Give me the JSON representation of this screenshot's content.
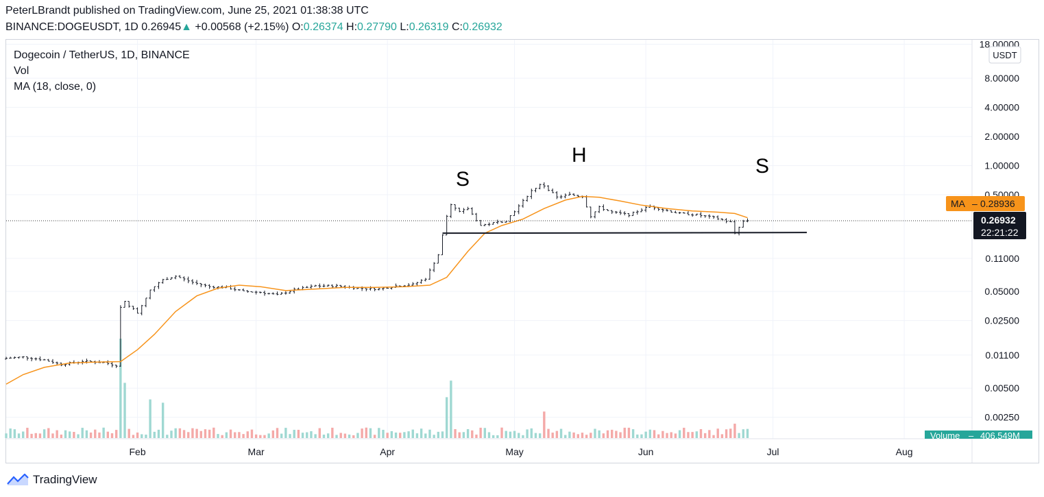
{
  "header": {
    "published": "PeterLBrandt published on TradingView.com, June 25, 2021 01:38:38 UTC",
    "symbol": "BINANCE:DOGEUSDT, 1D",
    "last": "0.26945",
    "change_arrow": "▲",
    "change": "+0.00568 (+2.15%)",
    "o_label": "O:",
    "o_value": "0.26374",
    "h_label": "H:",
    "h_value": "0.27790",
    "l_label": "L:",
    "l_value": "0.26319",
    "c_label": "C:",
    "c_value": "0.26932"
  },
  "legend": {
    "title": "Dogecoin / TetherUS, 1D, BINANCE",
    "vol": "Vol",
    "ma": "MA (18, close, 0)"
  },
  "price_scale": {
    "currency": "USDT",
    "ticks": [
      "18.00000",
      "8.00000",
      "4.00000",
      "2.00000",
      "1.00000",
      "0.50000",
      "0.11000",
      "0.05000",
      "0.02500",
      "0.01100",
      "0.00500",
      "0.00250"
    ],
    "ma_label": "MA",
    "ma_value": "0.28936",
    "last_price": "0.26932",
    "countdown": "22:21:22",
    "volume_label": "Volume",
    "volume_value": "406.549M"
  },
  "time_axis": [
    "Feb",
    "Mar",
    "Apr",
    "May",
    "Jun",
    "Jul",
    "Aug"
  ],
  "annotations": {
    "left_shoulder": "S",
    "head": "H",
    "right_shoulder": "S"
  },
  "footer": {
    "brand": "TradingView"
  },
  "colors": {
    "up": "#26a69a",
    "down": "#ef5350",
    "ma": "#f7931a",
    "vol_up": "#9fd8d2",
    "vol_down": "#f4a9a8",
    "grid": "#f0f3fa"
  },
  "chart_data": {
    "type": "candlestick",
    "title": "Dogecoin / TetherUS, 1D, BINANCE",
    "scale": "log",
    "ylim": [
      0.0015,
      20
    ],
    "x_range": [
      "2021-01-01",
      "2021-08-17"
    ],
    "pattern": "head-and-shoulders",
    "neckline": {
      "from": "2021-04-14",
      "to": "2021-07-09",
      "value": 0.2
    },
    "series": [
      {
        "name": "DOGEUSDT close",
        "points": [
          [
            "2021-01-01",
            0.0102
          ],
          [
            "2021-01-05",
            0.0105
          ],
          [
            "2021-01-10",
            0.0098
          ],
          [
            "2021-01-14",
            0.0088
          ],
          [
            "2021-01-19",
            0.0095
          ],
          [
            "2021-01-24",
            0.0092
          ],
          [
            "2021-01-27",
            0.0086
          ],
          [
            "2021-01-28",
            0.034
          ],
          [
            "2021-01-29",
            0.039
          ],
          [
            "2021-02-01",
            0.03
          ],
          [
            "2021-02-04",
            0.052
          ],
          [
            "2021-02-07",
            0.066
          ],
          [
            "2021-02-10",
            0.072
          ],
          [
            "2021-02-14",
            0.062
          ],
          [
            "2021-02-18",
            0.056
          ],
          [
            "2021-02-22",
            0.055
          ],
          [
            "2021-02-26",
            0.05
          ],
          [
            "2021-03-02",
            0.049
          ],
          [
            "2021-03-06",
            0.046
          ],
          [
            "2021-03-10",
            0.052
          ],
          [
            "2021-03-15",
            0.057
          ],
          [
            "2021-03-20",
            0.057
          ],
          [
            "2021-03-25",
            0.054
          ],
          [
            "2021-03-30",
            0.053
          ],
          [
            "2021-04-03",
            0.057
          ],
          [
            "2021-04-07",
            0.059
          ],
          [
            "2021-04-10",
            0.068
          ],
          [
            "2021-04-13",
            0.12
          ],
          [
            "2021-04-15",
            0.3
          ],
          [
            "2021-04-16",
            0.39
          ],
          [
            "2021-04-18",
            0.33
          ],
          [
            "2021-04-20",
            0.36
          ],
          [
            "2021-04-23",
            0.24
          ],
          [
            "2021-04-25",
            0.25
          ],
          [
            "2021-04-29",
            0.27
          ],
          [
            "2021-05-02",
            0.38
          ],
          [
            "2021-05-05",
            0.55
          ],
          [
            "2021-05-07",
            0.63
          ],
          [
            "2021-05-08",
            0.62
          ],
          [
            "2021-05-11",
            0.47
          ],
          [
            "2021-05-14",
            0.5
          ],
          [
            "2021-05-17",
            0.48
          ],
          [
            "2021-05-19",
            0.3
          ],
          [
            "2021-05-21",
            0.37
          ],
          [
            "2021-05-24",
            0.33
          ],
          [
            "2021-05-28",
            0.31
          ],
          [
            "2021-06-02",
            0.38
          ],
          [
            "2021-06-05",
            0.35
          ],
          [
            "2021-06-09",
            0.32
          ],
          [
            "2021-06-13",
            0.31
          ],
          [
            "2021-06-17",
            0.29
          ],
          [
            "2021-06-21",
            0.26
          ],
          [
            "2021-06-22",
            0.2
          ],
          [
            "2021-06-23",
            0.23
          ],
          [
            "2021-06-24",
            0.264
          ],
          [
            "2021-06-25",
            0.26932
          ]
        ]
      },
      {
        "name": "MA (18, close, 0)",
        "points": [
          [
            "2021-01-01",
            0.0055
          ],
          [
            "2021-01-05",
            0.0069
          ],
          [
            "2021-01-10",
            0.0082
          ],
          [
            "2021-01-16",
            0.0091
          ],
          [
            "2021-01-22",
            0.0093
          ],
          [
            "2021-01-28",
            0.0094
          ],
          [
            "2021-02-01",
            0.0125
          ],
          [
            "2021-02-05",
            0.018
          ],
          [
            "2021-02-10",
            0.031
          ],
          [
            "2021-02-15",
            0.045
          ],
          [
            "2021-02-20",
            0.054
          ],
          [
            "2021-02-25",
            0.058
          ],
          [
            "2021-03-02",
            0.056
          ],
          [
            "2021-03-08",
            0.051
          ],
          [
            "2021-03-15",
            0.053
          ],
          [
            "2021-03-22",
            0.055
          ],
          [
            "2021-03-29",
            0.055
          ],
          [
            "2021-04-05",
            0.056
          ],
          [
            "2021-04-11",
            0.058
          ],
          [
            "2021-04-15",
            0.07
          ],
          [
            "2021-04-20",
            0.13
          ],
          [
            "2021-04-24",
            0.2
          ],
          [
            "2021-04-28",
            0.24
          ],
          [
            "2021-05-03",
            0.28
          ],
          [
            "2021-05-08",
            0.36
          ],
          [
            "2021-05-13",
            0.44
          ],
          [
            "2021-05-17",
            0.48
          ],
          [
            "2021-05-21",
            0.47
          ],
          [
            "2021-05-26",
            0.43
          ],
          [
            "2021-05-31",
            0.39
          ],
          [
            "2021-06-06",
            0.36
          ],
          [
            "2021-06-12",
            0.34
          ],
          [
            "2021-06-18",
            0.33
          ],
          [
            "2021-06-22",
            0.32
          ],
          [
            "2021-06-25",
            0.28936
          ]
        ]
      }
    ],
    "volume": {
      "unit": "M",
      "last": 406.549,
      "spikes": [
        [
          "2021-01-28",
          9000
        ],
        [
          "2021-01-29",
          5000
        ],
        [
          "2021-02-04",
          3500
        ],
        [
          "2021-02-07",
          3200
        ],
        [
          "2021-04-15",
          3700
        ],
        [
          "2021-04-16",
          5200
        ],
        [
          "2021-05-08",
          2400
        ],
        [
          "2021-06-22",
          1300
        ]
      ]
    }
  }
}
